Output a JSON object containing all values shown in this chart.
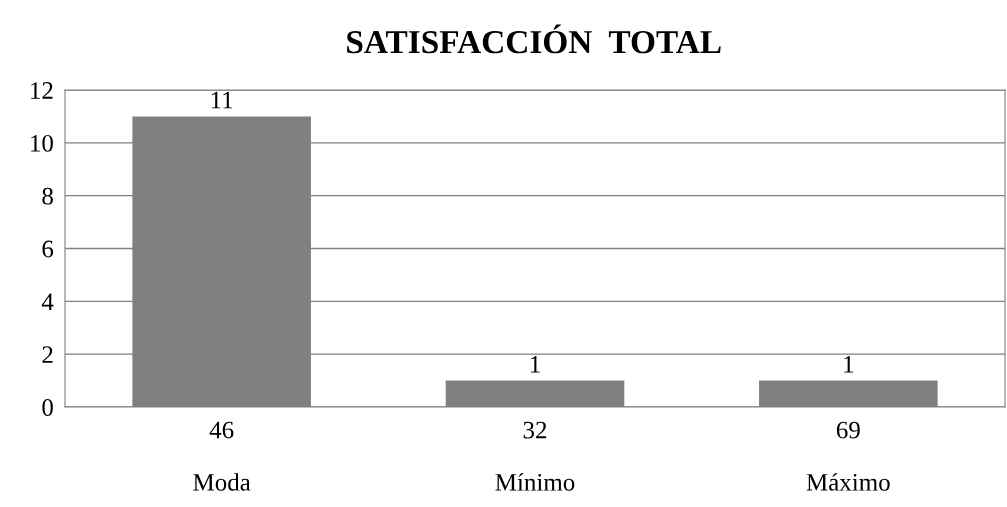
{
  "chart_data": {
    "type": "bar",
    "title": "SATISFACCIÓN  TOTAL",
    "categories": [
      "46\n\nModa",
      "32\n\nMínimo",
      "69\n\nMáximo"
    ],
    "values": [
      11,
      1,
      1
    ],
    "color": "#808080",
    "ylim": [
      0,
      12
    ],
    "yticks": [
      0,
      2,
      4,
      6,
      8,
      10,
      12
    ],
    "grid": "y",
    "data_labels": true
  }
}
